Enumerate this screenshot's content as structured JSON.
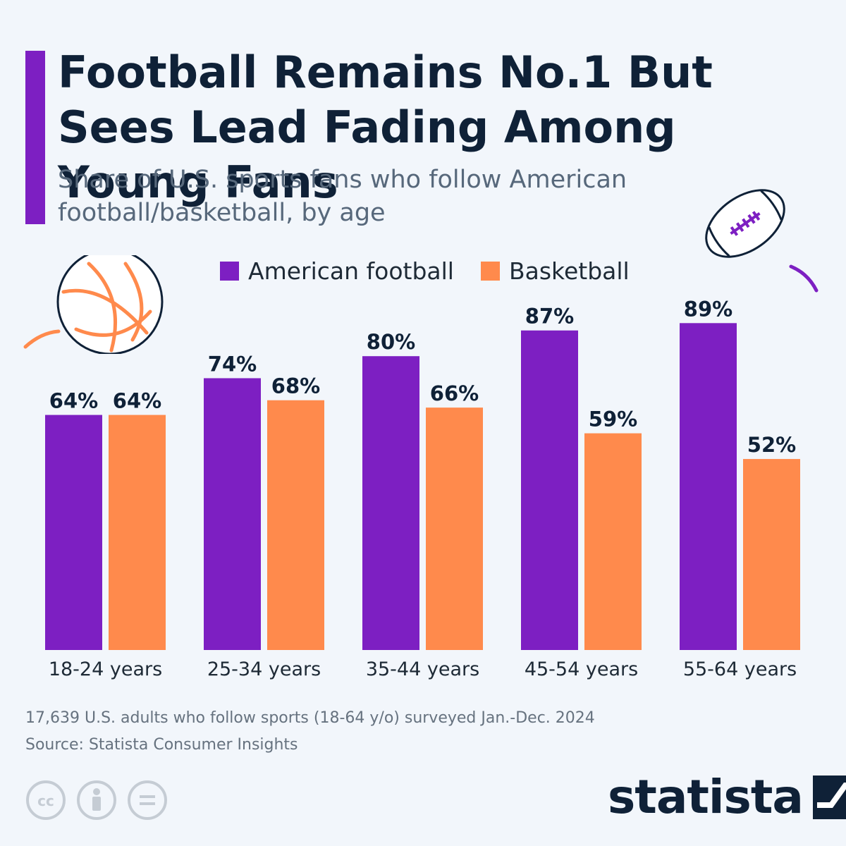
{
  "header": {
    "title": "Football Remains No.1 But Sees Lead Fading Among Young Fans",
    "subtitle": "Share of U.S. sports fans who follow American football/basketball, by age"
  },
  "colors": {
    "football": "#7d1fc2",
    "basketball": "#ff8a4c",
    "accent": "#7d1fc2",
    "text": "#0f2137"
  },
  "chart_data": {
    "type": "bar",
    "title": "Football Remains No.1 But Sees Lead Fading Among Young Fans",
    "subtitle": "Share of U.S. sports fans who follow American football/basketball, by age",
    "categories": [
      "18-24 years",
      "25-34 years",
      "35-44 years",
      "45-54 years",
      "55-64 years"
    ],
    "series": [
      {
        "name": "American football",
        "values": [
          64,
          74,
          80,
          87,
          89
        ],
        "labels": [
          "64%",
          "74%",
          "80%",
          "87%",
          "89%"
        ]
      },
      {
        "name": "Basketball",
        "values": [
          64,
          68,
          66,
          59,
          52
        ],
        "labels": [
          "64%",
          "68%",
          "66%",
          "59%",
          "52%"
        ]
      }
    ],
    "unit": "%",
    "ylim": [
      0,
      100
    ],
    "grid": false,
    "legend": "top-center",
    "xlabel": "",
    "ylabel": ""
  },
  "footer": {
    "note": "17,639 U.S. adults who follow sports (18-64 y/o) surveyed Jan.-Dec. 2024",
    "source": "Source: Statista Consumer Insights",
    "brand": "statista"
  },
  "icons": [
    "basketball-icon",
    "football-icon",
    "cc-icon",
    "attribution-icon",
    "no-derivatives-icon",
    "statista-logo-icon"
  ]
}
